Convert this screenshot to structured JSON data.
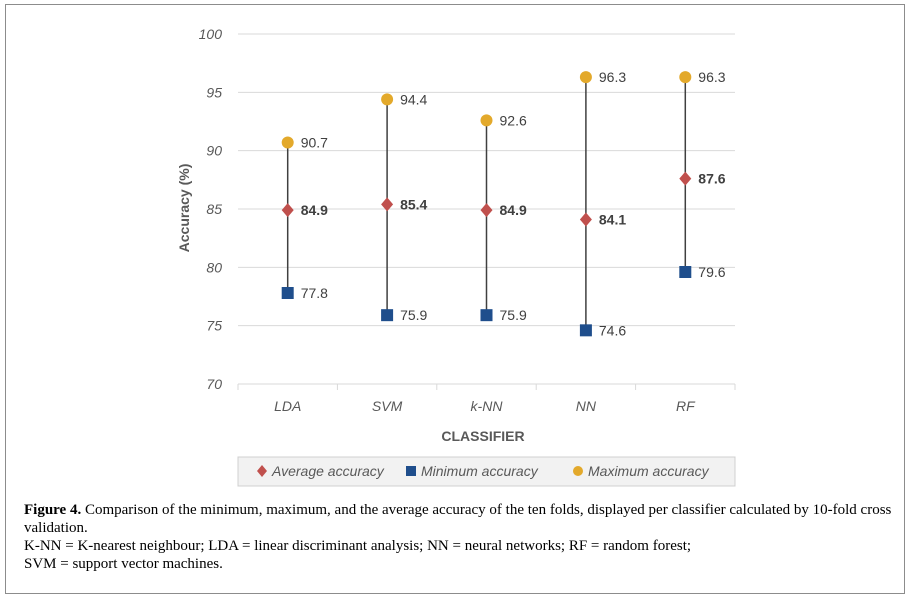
{
  "chart_data": {
    "type": "scatter",
    "categories": [
      "LDA",
      "SVM",
      "k-NN",
      "NN",
      "RF"
    ],
    "series": [
      {
        "name": "Average accuracy",
        "values": [
          84.9,
          85.4,
          84.9,
          84.1,
          87.6
        ],
        "marker": "diamond",
        "color": "#c0504d",
        "label_bold": true
      },
      {
        "name": "Minimum accuracy",
        "values": [
          77.8,
          75.9,
          75.9,
          74.6,
          79.6
        ],
        "marker": "square",
        "color": "#1f4e8c",
        "label_bold": false
      },
      {
        "name": "Maximum accuracy",
        "values": [
          90.7,
          94.4,
          92.6,
          96.3,
          96.3
        ],
        "marker": "circle",
        "color": "#e3a92b",
        "label_bold": false
      }
    ],
    "value_labels": {
      "Average accuracy": [
        "84.9",
        "85.4",
        "84.9",
        "84.1",
        "87.6"
      ],
      "Minimum accuracy": [
        "77.8",
        "75.9",
        "75.9",
        "74.6",
        "79.6"
      ],
      "Maximum accuracy": [
        "90.7",
        "94.4",
        "92.6",
        "96.3",
        "96.3"
      ]
    },
    "xlabel": "CLASSIFIER",
    "ylabel": "Accuracy (%)",
    "ylim": [
      70,
      100
    ],
    "yticks": [
      70,
      75,
      80,
      85,
      90,
      95,
      100
    ],
    "grid": true,
    "range_lines": true,
    "legend_position": "bottom"
  },
  "caption": {
    "label": "Figure 4.",
    "text": "Comparison of the minimum, maximum, and the average accuracy of the ten folds, displayed per classifier calculated by 10-fold cross validation.",
    "abbreviations_line1": "K-NN = K-nearest neighbour; LDA = linear discriminant analysis; NN = neural networks; RF = random forest;",
    "abbreviations_line2": "SVM = support vector machines."
  },
  "colors": {
    "grid": "#d9d9d9",
    "range_line": "#404040",
    "axis_text": "#595959",
    "label_text": "#404040"
  }
}
